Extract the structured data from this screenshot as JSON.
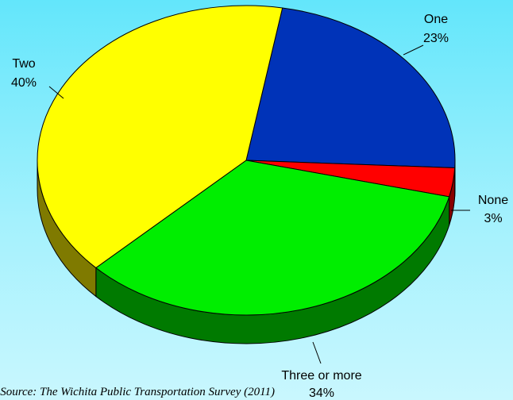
{
  "chart_data": {
    "type": "pie",
    "title": "",
    "slices": [
      {
        "label": "One",
        "value": 23,
        "value_label": "23%",
        "color": "#0033b8",
        "side_color": "#001a66"
      },
      {
        "label": "None",
        "value": 3,
        "value_label": "3%",
        "color": "#ff0000",
        "side_color": "#8a0000"
      },
      {
        "label": "Three or more",
        "value": 34,
        "value_label": "34%",
        "color": "#00ee00",
        "side_color": "#007a00"
      },
      {
        "label": "Two",
        "value": 40,
        "value_label": "40%",
        "color": "#ffff00",
        "side_color": "#7f7a00"
      }
    ],
    "style": "3d-pie",
    "legend": "none",
    "labels": "outside-with-leader-lines"
  },
  "source_note": "Source: The Wichita Public Transportation Survey (2011)",
  "colors": {
    "background_top": "#63e6fb",
    "background_bottom": "#c9f7fe"
  }
}
